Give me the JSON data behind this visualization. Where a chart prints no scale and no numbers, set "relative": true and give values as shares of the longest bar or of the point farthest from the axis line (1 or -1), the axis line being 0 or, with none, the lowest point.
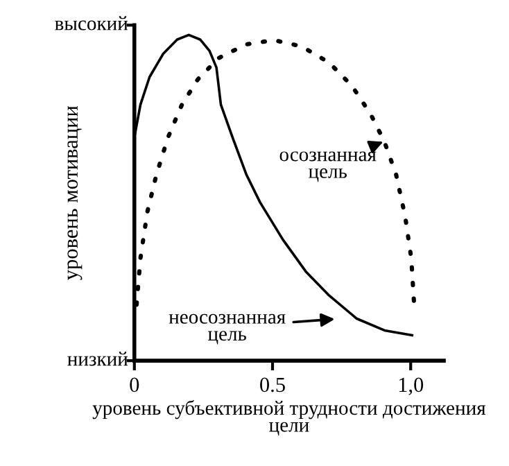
{
  "chart_data": {
    "type": "line",
    "relative": true,
    "xlabel": "уровень субъективной трудности достижения цели",
    "ylabel": "уровень мотивации",
    "xlim": [
      0,
      1.12
    ],
    "xticks": [
      0,
      0.5,
      {
        "value": 1,
        "label": "1,0"
      }
    ],
    "grid": false,
    "marker": "none",
    "annotations": [
      "высокий",
      "низкий",
      {
        "text": "осознанная\nцель",
        "x": 0.9,
        "y": 0.672
      },
      "неосознанная\nцель"
    ],
    "series": [
      {
        "color": "#000000",
        "line_style": "solid",
        "x": [
          0,
          0.022,
          0.055,
          0.105,
          0.155,
          0.197,
          0.238,
          0.272,
          0.297,
          0.313,
          0.355,
          0.405,
          0.455,
          0.538,
          0.622,
          0.705,
          0.805,
          0.905,
          1.005
        ],
        "values": [
          0.686,
          0.786,
          0.871,
          0.943,
          0.986,
          1,
          0.986,
          0.951,
          0.9,
          0.786,
          0.686,
          0.572,
          0.486,
          0.371,
          0.272,
          0.2,
          0.129,
          0.093,
          0.078
        ]
      },
      {
        "color": "#000000",
        "line_style": "dotted",
        "x": [
          0.008,
          0.022,
          0.047,
          0.08,
          0.122,
          0.172,
          0.23,
          0.305,
          0.405,
          0.505,
          0.605,
          0.705,
          0.788,
          0.855,
          0.905,
          0.947,
          0.98,
          1.002,
          1.013
        ],
        "values": [
          0.172,
          0.315,
          0.457,
          0.572,
          0.686,
          0.786,
          0.864,
          0.929,
          0.971,
          0.984,
          0.965,
          0.915,
          0.843,
          0.757,
          0.672,
          0.572,
          0.443,
          0.315,
          0.165
        ]
      }
    ]
  }
}
